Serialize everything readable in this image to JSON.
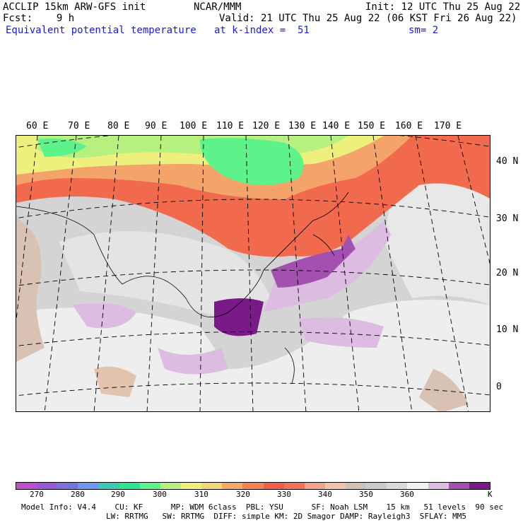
{
  "header": {
    "model": "ACCLIP 15km ARW-GFS init",
    "forecast": "Fcst:    9 h",
    "field": "Equivalent potential temperature",
    "center": "NCAR/MMM",
    "init": "Init: 12 UTC Thu 25 Aug 22",
    "valid": "Valid: 21 UTC Thu 25 Aug 22 (06 KST Fri 26 Aug 22)",
    "level": "at k-index =  51",
    "smooth": "sm= 2"
  },
  "map": {
    "lon_labels": [
      "60 E",
      "70 E",
      "80 E",
      "90 E",
      "100 E",
      "110 E",
      "120 E",
      "130 E",
      "140 E",
      "150 E",
      "160 E",
      "170 E"
    ],
    "lat_labels": [
      "40 N",
      "30 N",
      "20 N",
      "10 N",
      "0"
    ]
  },
  "colorbar": {
    "colors": [
      "#c050c8",
      "#9a5ad6",
      "#7a72e2",
      "#6e98ea",
      "#3ccab6",
      "#2ee690",
      "#5ef28a",
      "#b6f07e",
      "#eef07e",
      "#f2d47a",
      "#f4aa66",
      "#f08458",
      "#f06048",
      "#f27258",
      "#f0a48a",
      "#f0c4aa",
      "#d2c0b6",
      "#cbcbcb",
      "#dadada",
      "#f2f2f2",
      "#dcbce0",
      "#a450b0",
      "#7a1a88"
    ],
    "tick_labels": [
      "270",
      "280",
      "290",
      "300",
      "310",
      "320",
      "330",
      "340",
      "350",
      "360",
      "K"
    ]
  },
  "footer": {
    "line1": "Model Info: V4.4    CU: KF      MP: WDM 6class  PBL: YSU      SF: Noah LSM    15 km   51 levels  90 sec",
    "line2": "LW: RRTMG   SW: RRTMG  DIFF: simple KM: 2D Smagor DAMP: Rayleigh3  SFLAY: MM5"
  }
}
